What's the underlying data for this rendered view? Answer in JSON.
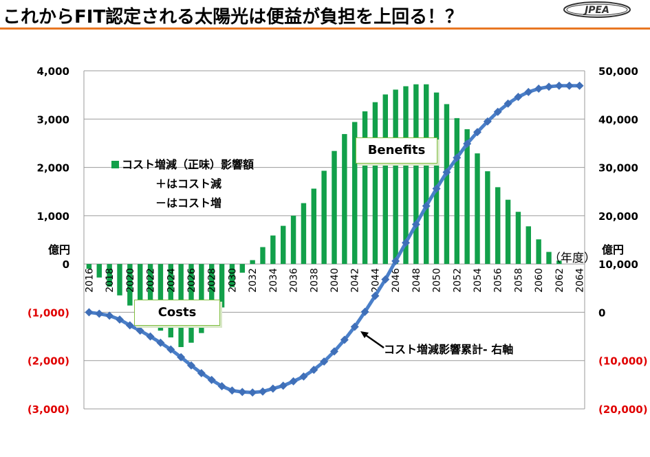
{
  "title": "これからFIT認定される太陽光は便益が負担を上回る！？",
  "logo_text": "JPEA",
  "colors": {
    "accent_line": "#e87722",
    "bar": "#12a04a",
    "line": "#4a7fc9",
    "marker": "#3f6fb8",
    "negative_tick": "#e00000",
    "annotation_border": "#7fbf3f"
  },
  "chart_data": {
    "type": "bar+line",
    "x_tick_labels": [
      "2016",
      "2018",
      "2020",
      "2022",
      "2024",
      "2026",
      "2028",
      "2030",
      "2032",
      "2034",
      "2036",
      "2038",
      "2040",
      "2042",
      "2044",
      "2046",
      "2048",
      "2050",
      "2052",
      "2054",
      "2056",
      "2058",
      "2060",
      "2062",
      "2064"
    ],
    "y_left": {
      "min": -3000,
      "max": 4000,
      "tick_labels": [
        "4,000",
        "3,000",
        "2,000",
        "1,000",
        "0",
        "(1,000)",
        "(2,000)",
        "(3,000)"
      ],
      "unit": "億円"
    },
    "y_right": {
      "min": -20000,
      "max": 50000,
      "tick_labels": [
        "50,000",
        "40,000",
        "30,000",
        "20,000",
        "10,000",
        "0",
        "(10,000)",
        "(20,000)"
      ],
      "unit": "億円"
    },
    "x_unit": "（年度）",
    "series": [
      {
        "name": "コスト増減（正味）影響額",
        "kind": "bar",
        "axis": "left",
        "x": [
          2016,
          2017,
          2018,
          2019,
          2020,
          2021,
          2022,
          2023,
          2024,
          2025,
          2026,
          2027,
          2028,
          2029,
          2030,
          2031,
          2032,
          2033,
          2034,
          2035,
          2036,
          2037,
          2038,
          2039,
          2040,
          2041,
          2042,
          2043,
          2044,
          2045,
          2046,
          2047,
          2048,
          2049,
          2050,
          2051,
          2052,
          2053,
          2054,
          2055,
          2056,
          2057,
          2058,
          2059,
          2060,
          2061,
          2062,
          2063,
          2064
        ],
        "values": [
          -100,
          -280,
          -470,
          -650,
          -860,
          -1040,
          -1200,
          -1380,
          -1520,
          -1720,
          -1630,
          -1430,
          -1160,
          -900,
          -480,
          -180,
          80,
          350,
          590,
          790,
          1000,
          1260,
          1560,
          1930,
          2340,
          2690,
          2940,
          3160,
          3350,
          3510,
          3610,
          3680,
          3720,
          3720,
          3550,
          3310,
          3020,
          2790,
          2290,
          1920,
          1590,
          1330,
          1080,
          780,
          510,
          250,
          70,
          0,
          0
        ]
      },
      {
        "name": "コスト増減影響累計",
        "kind": "line",
        "axis": "right",
        "x": [
          2016,
          2017,
          2018,
          2019,
          2020,
          2021,
          2022,
          2023,
          2024,
          2025,
          2026,
          2027,
          2028,
          2029,
          2030,
          2031,
          2032,
          2033,
          2034,
          2035,
          2036,
          2037,
          2038,
          2039,
          2040,
          2041,
          2042,
          2043,
          2044,
          2045,
          2046,
          2047,
          2048,
          2049,
          2050,
          2051,
          2052,
          2053,
          2054,
          2055,
          2056,
          2057,
          2058,
          2059,
          2060,
          2061,
          2062,
          2063,
          2064
        ],
        "values": [
          0,
          -300,
          -700,
          -1500,
          -2700,
          -3800,
          -5000,
          -6300,
          -7700,
          -9300,
          -11000,
          -12600,
          -14000,
          -15300,
          -16200,
          -16500,
          -16600,
          -16400,
          -15800,
          -15200,
          -14300,
          -13300,
          -11900,
          -10200,
          -8100,
          -5700,
          -3000,
          100,
          3400,
          6800,
          10600,
          14400,
          18200,
          22000,
          25600,
          29000,
          32000,
          34900,
          37300,
          39500,
          41500,
          43200,
          44600,
          45600,
          46300,
          46700,
          46900,
          46900,
          46900
        ]
      }
    ],
    "legend": {
      "swatch_label": "コスト増減（正味）影響額",
      "line1": "＋はコスト減",
      "line2": "－はコスト増"
    },
    "annotations": {
      "benefits": "Benefits",
      "costs": "Costs",
      "cumulative": "コスト増減影響累計-  右軸"
    },
    "grid": "horizontal"
  }
}
